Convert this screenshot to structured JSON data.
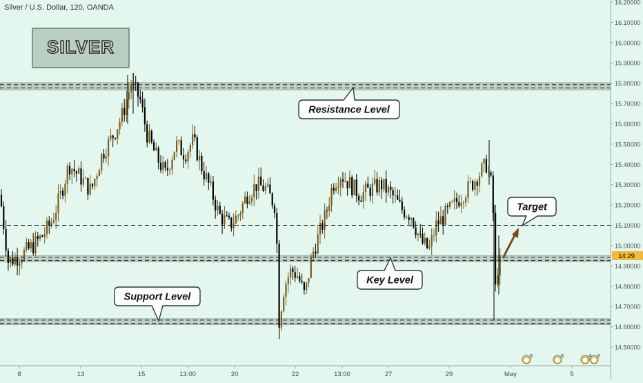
{
  "header": {
    "symbol_title": "Silver / U.S. Dollar, 120, OANDA"
  },
  "logo_text": "SILVER",
  "price_tag": "14:29",
  "event_icons": [
    {
      "name": "earnings-icon",
      "label": "8"
    },
    {
      "name": "earnings-icon",
      "label": "8"
    },
    {
      "name": "earnings-icon",
      "label": "4"
    },
    {
      "name": "earnings-icon",
      "label": "8"
    }
  ],
  "colors": {
    "background": "#e3f7ee",
    "candle_up": "#7a5b1c",
    "candle_down": "#000000",
    "zone_fill": "#b9c9be",
    "price_tag": "#f5b93a",
    "arrow": "#7a4a16",
    "logo_bg": "#b9cfc2"
  },
  "chart_data": {
    "type": "candlestick",
    "title": "Silver / U.S. Dollar, 120, OANDA",
    "y_ticks": [
      "14.50000",
      "14.60000",
      "14.70000",
      "14.80000",
      "14.90000",
      "15.00000",
      "15.10000",
      "15.20000",
      "15.30000",
      "15.40000",
      "15.50000",
      "15.60000",
      "15.70000",
      "15.80000",
      "15.90000",
      "16.00000",
      "16.10000",
      "16.20000"
    ],
    "ylim": [
      14.455,
      16.21
    ],
    "x_ticks": [
      "8",
      "13",
      "15",
      "13:00",
      "20",
      "22",
      "13:00",
      "27",
      "29",
      "May",
      "5"
    ],
    "levels": [
      {
        "name": "Resistance Level",
        "value": 15.785
      },
      {
        "name": "Support Level",
        "value": 14.625
      },
      {
        "name": "Key Level",
        "value": 14.935
      },
      {
        "name": "Target",
        "value": 15.1
      }
    ],
    "annotations": [
      "Resistance Level",
      "Support Level",
      "Key Level",
      "Target"
    ],
    "approx_path": [
      [
        0,
        15.25
      ],
      [
        12,
        14.92
      ],
      [
        30,
        14.95
      ],
      [
        48,
        15.0
      ],
      [
        62,
        15.05
      ],
      [
        75,
        15.12
      ],
      [
        88,
        15.25
      ],
      [
        100,
        15.4
      ],
      [
        118,
        15.33
      ],
      [
        132,
        15.27
      ],
      [
        148,
        15.45
      ],
      [
        165,
        15.55
      ],
      [
        178,
        15.65
      ],
      [
        190,
        15.8
      ],
      [
        203,
        15.72
      ],
      [
        213,
        15.55
      ],
      [
        225,
        15.45
      ],
      [
        240,
        15.35
      ],
      [
        255,
        15.5
      ],
      [
        268,
        15.45
      ],
      [
        280,
        15.52
      ],
      [
        293,
        15.38
      ],
      [
        305,
        15.28
      ],
      [
        318,
        15.15
      ],
      [
        333,
        15.1
      ],
      [
        345,
        15.15
      ],
      [
        358,
        15.25
      ],
      [
        372,
        15.3
      ],
      [
        385,
        15.28
      ],
      [
        398,
        15.2
      ],
      [
        401,
        15.05
      ],
      [
        404,
        14.62
      ],
      [
        412,
        14.8
      ],
      [
        422,
        14.88
      ],
      [
        432,
        14.85
      ],
      [
        442,
        14.75
      ],
      [
        452,
        14.95
      ],
      [
        462,
        15.05
      ],
      [
        472,
        15.15
      ],
      [
        482,
        15.3
      ],
      [
        494,
        15.35
      ],
      [
        508,
        15.3
      ],
      [
        522,
        15.25
      ],
      [
        538,
        15.28
      ],
      [
        553,
        15.3
      ],
      [
        568,
        15.25
      ],
      [
        582,
        15.18
      ],
      [
        596,
        15.15
      ],
      [
        610,
        15.02
      ],
      [
        622,
        14.98
      ],
      [
        632,
        15.1
      ],
      [
        645,
        15.15
      ],
      [
        658,
        15.2
      ],
      [
        670,
        15.25
      ],
      [
        683,
        15.3
      ],
      [
        694,
        15.35
      ],
      [
        705,
        15.4
      ],
      [
        712,
        15.3
      ],
      [
        716,
        15.1
      ],
      [
        719,
        14.65
      ],
      [
        722,
        14.95
      ],
      [
        726,
        14.9
      ]
    ]
  }
}
